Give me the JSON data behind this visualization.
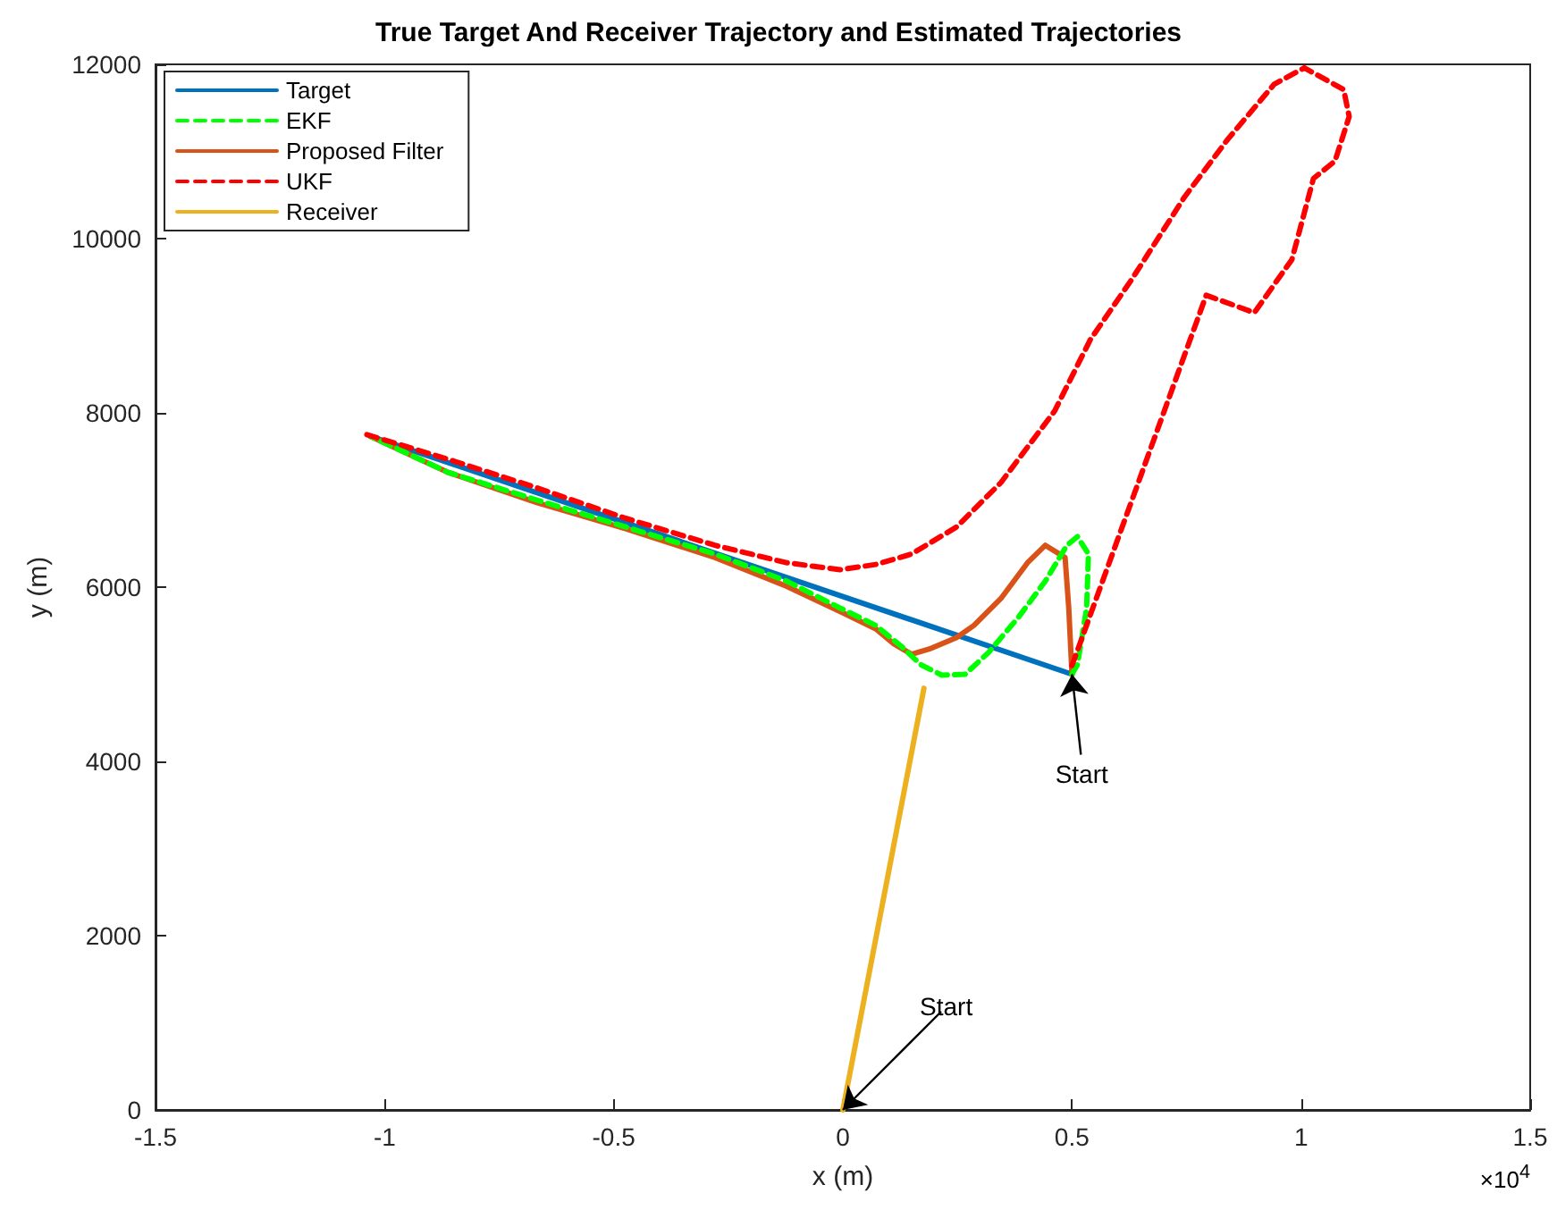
{
  "chart_data": {
    "type": "line",
    "title": "True Target And Receiver Trajectory and Estimated Trajectories",
    "xlabel": "x (m)",
    "ylabel": "y (m)",
    "xlim": [
      -1.5,
      1.5
    ],
    "ylim": [
      0,
      12000
    ],
    "xticks": [
      -1.5,
      -1,
      -0.5,
      0,
      0.5,
      1,
      1.5
    ],
    "yticks": [
      0,
      2000,
      4000,
      6000,
      8000,
      10000,
      12000
    ],
    "grid": false,
    "legend": "top left",
    "marker": "none",
    "annotations": [
      "×10$^{4}$",
      {
        "text": "Start",
        "x": 0.5,
        "y": 5000
      },
      {
        "text": "Start",
        "x": 0,
        "y": 0
      }
    ],
    "series": [
      {
        "name": "Target",
        "color": "#0072bd",
        "line_style": "solid",
        "x": [
          0.5,
          -1.03
        ],
        "values": [
          5000,
          7730
        ]
      },
      {
        "name": "EKF",
        "color": "#00ff00",
        "line_style": "dashed",
        "x": [
          0.5,
          0.512,
          0.532,
          0.536,
          0.512,
          0.489,
          0.442,
          0.384,
          0.318,
          0.267,
          0.216,
          0.17,
          0.13,
          0.072,
          -0.006,
          -0.123,
          -0.279,
          -0.474,
          -0.668,
          -0.863,
          -1.031
        ],
        "values": [
          5000,
          5110,
          5760,
          6380,
          6580,
          6480,
          6070,
          5660,
          5250,
          5000,
          4990,
          5110,
          5310,
          5560,
          5760,
          6070,
          6380,
          6690,
          7000,
          7320,
          7730
        ]
      },
      {
        "name": "Proposed Filter",
        "color": "#d95319",
        "line_style": "solid",
        "x": [
          0.5,
          0.493,
          0.485,
          0.442,
          0.403,
          0.345,
          0.286,
          0.248,
          0.189,
          0.15,
          0.111,
          0.072,
          -0.006,
          -0.123,
          -0.279,
          -0.474,
          -0.668,
          -0.863,
          -1.031
        ],
        "values": [
          5000,
          5760,
          6340,
          6480,
          6280,
          5870,
          5560,
          5420,
          5290,
          5230,
          5350,
          5520,
          5720,
          6010,
          6340,
          6670,
          6970,
          7320,
          7730
        ]
      },
      {
        "name": "UKF",
        "color": "#ff0000",
        "line_style": "dashed",
        "x": [
          0.5,
          0.793,
          0.898,
          0.98,
          1.027,
          1.074,
          1.105,
          1.093,
          1.007,
          0.941,
          0.84,
          0.746,
          0.629,
          0.54,
          0.462,
          0.345,
          0.248,
          0.15,
          0.072,
          -0.006,
          -0.123,
          -0.279,
          -0.474,
          -0.668,
          -0.863,
          -1.039
        ],
        "values": [
          5100,
          9350,
          9150,
          9760,
          10690,
          10890,
          11400,
          11710,
          11960,
          11770,
          11140,
          10480,
          9520,
          8840,
          8020,
          7200,
          6690,
          6380,
          6260,
          6200,
          6280,
          6480,
          6790,
          7140,
          7470,
          7750
        ]
      },
      {
        "name": "Receiver",
        "color": "#edb120",
        "line_style": "solid",
        "x": [
          0,
          0.177
        ],
        "values": [
          0,
          4840
        ]
      }
    ]
  }
}
